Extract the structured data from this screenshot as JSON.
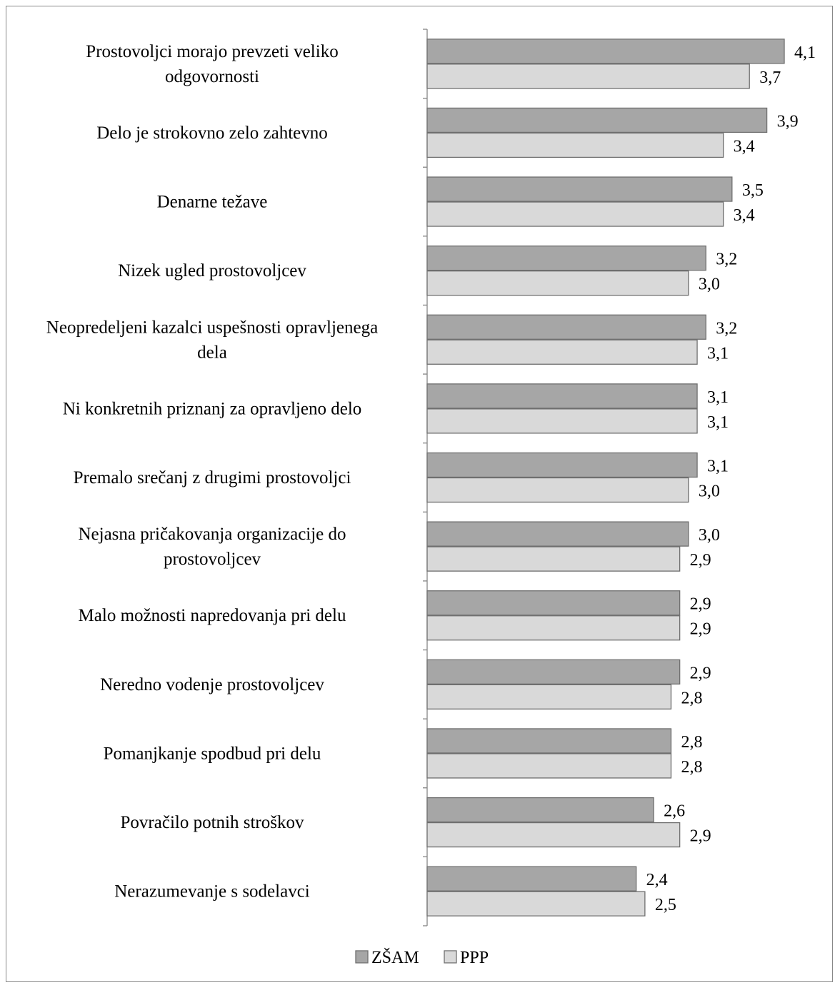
{
  "chart_data": {
    "type": "bar",
    "orientation": "horizontal",
    "categories": [
      "Prostovoljci morajo prevzeti veliko odgovornosti",
      "Delo je strokovno zelo zahtevno",
      "Denarne težave",
      "Nizek ugled prostovoljcev",
      "Neopredeljeni kazalci uspešnosti opravljenega dela",
      "Ni konkretnih priznanj za opravljeno delo",
      "Premalo srečanj z drugimi prostovoljci",
      "Nejasna pričakovanja organizacije do prostovoljcev",
      "Malo možnosti napredovanja pri delu",
      "Neredno vodenje prostovoljcev",
      "Pomanjkanje spodbud pri delu",
      "Povračilo potnih stroškov",
      "Nerazumevanje s sodelavci"
    ],
    "category_lines": [
      [
        "Prostovoljci morajo prevzeti veliko",
        "odgovornosti"
      ],
      [
        "Delo je strokovno zelo zahtevno"
      ],
      [
        "Denarne težave"
      ],
      [
        "Nizek ugled prostovoljcev"
      ],
      [
        "Neopredeljeni kazalci uspešnosti opravljenega",
        "dela"
      ],
      [
        "Ni konkretnih priznanj za opravljeno delo"
      ],
      [
        "Premalo srečanj z drugimi prostovoljci"
      ],
      [
        "Nejasna pričakovanja organizacije do",
        "prostovoljcev"
      ],
      [
        "Malo možnosti napredovanja pri delu"
      ],
      [
        "Neredno vodenje prostovoljcev"
      ],
      [
        "Pomanjkanje spodbud pri delu"
      ],
      [
        "Povračilo potnih stroškov"
      ],
      [
        "Nerazumevanje s sodelavci"
      ]
    ],
    "series": [
      {
        "name": "ZŠAM",
        "color": "#a6a6a6",
        "values": [
          4.1,
          3.9,
          3.5,
          3.2,
          3.2,
          3.1,
          3.1,
          3.0,
          2.9,
          2.9,
          2.8,
          2.6,
          2.4
        ],
        "labels": [
          "4,1",
          "3,9",
          "3,5",
          "3,2",
          "3,2",
          "3,1",
          "3,1",
          "3,0",
          "2,9",
          "2,9",
          "2,8",
          "2,6",
          "2,4"
        ]
      },
      {
        "name": "PPP",
        "color": "#d9d9d9",
        "values": [
          3.7,
          3.4,
          3.4,
          3.0,
          3.1,
          3.1,
          3.0,
          2.9,
          2.9,
          2.8,
          2.8,
          2.9,
          2.5
        ],
        "labels": [
          "3,7",
          "3,4",
          "3,4",
          "3,0",
          "3,1",
          "3,1",
          "3,0",
          "2,9",
          "2,9",
          "2,8",
          "2,8",
          "2,9",
          "2,5"
        ]
      }
    ],
    "xlim": [
      0,
      4.1
    ],
    "grid": false,
    "legend_position": "bottom",
    "title": "",
    "xlabel": "",
    "ylabel": ""
  }
}
